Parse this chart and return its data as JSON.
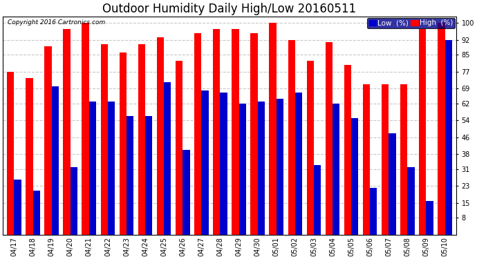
{
  "title": "Outdoor Humidity Daily High/Low 20160511",
  "copyright": "Copyright 2016 Cartronics.com",
  "categories": [
    "04/17",
    "04/18",
    "04/19",
    "04/20",
    "04/21",
    "04/22",
    "04/23",
    "04/24",
    "04/25",
    "04/26",
    "04/27",
    "04/28",
    "04/29",
    "04/30",
    "05/01",
    "05/02",
    "05/03",
    "05/04",
    "05/05",
    "05/06",
    "05/07",
    "05/08",
    "05/09",
    "05/10"
  ],
  "high_values": [
    77,
    74,
    89,
    97,
    100,
    90,
    86,
    90,
    93,
    82,
    95,
    97,
    97,
    95,
    100,
    92,
    82,
    91,
    80,
    71,
    71,
    71,
    97,
    100
  ],
  "low_values": [
    26,
    21,
    70,
    32,
    63,
    63,
    56,
    56,
    72,
    40,
    68,
    67,
    62,
    63,
    64,
    67,
    33,
    62,
    55,
    22,
    48,
    32,
    16,
    92
  ],
  "high_color": "#ff0000",
  "low_color": "#0000cc",
  "bg_color": "#ffffff",
  "grid_color": "#c8c8c8",
  "yticks": [
    8,
    15,
    23,
    31,
    38,
    46,
    54,
    62,
    69,
    77,
    85,
    92,
    100
  ],
  "ymin": 0,
  "ymax": 103,
  "title_fontsize": 12,
  "tick_fontsize": 7,
  "copyright_fontsize": 6.5,
  "legend_fontsize": 7.5
}
